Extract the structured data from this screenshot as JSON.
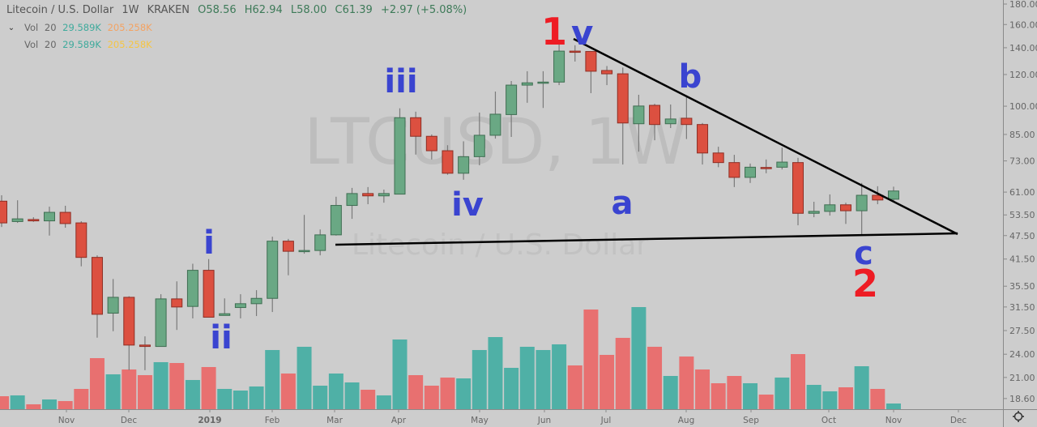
{
  "header": {
    "symbol": "Litecoin / U.S. Dollar",
    "interval": "1W",
    "exchange": "KRAKEN",
    "open": "O58.56",
    "high": "H62.94",
    "low": "L58.00",
    "close": "C61.39",
    "change": "+2.97 (+5.08%)"
  },
  "indicators": [
    {
      "name": "Vol",
      "length": "20",
      "value": "29.589K",
      "ma": "205.258K"
    },
    {
      "name": "Vol",
      "length": "20",
      "value": "29.589K",
      "ma": "205.258K"
    }
  ],
  "watermark": {
    "ticker": "LTCUSD, 1W",
    "description": "Litecoin / U.S. Dollar"
  },
  "icons": {
    "collapse": "chevron-down-icon",
    "settings": "gear-icon"
  },
  "colors": {
    "up": "#6aa884",
    "down": "#dc5040",
    "vol_up": "#4fb0a6",
    "vol_down": "#e87070",
    "wave_label": "#3a44d0",
    "wave_label_major": "#ee1c24",
    "background": "#cdcdcd"
  },
  "annotations": {
    "wave_1_major": "1",
    "wave_v": "v",
    "wave_i": "i",
    "wave_ii": "ii",
    "wave_iii": "iii",
    "wave_iv": "iv",
    "wave_a": "a",
    "wave_b": "b",
    "wave_c": "c",
    "wave_2_major": "2"
  },
  "chart_data": {
    "type": "candlestick",
    "title": "Litecoin / U.S. Dollar",
    "interval": "1W",
    "y_scale": "log",
    "ylim": [
      18.0,
      185.0
    ],
    "y_ticks": [
      "180.00",
      "160.00",
      "140.00",
      "120.00",
      "100.00",
      "85.00",
      "73.00",
      "61.00",
      "53.50",
      "47.50",
      "41.50",
      "35.50",
      "31.50",
      "27.50",
      "24.00",
      "21.00",
      "18.60"
    ],
    "x_ticks": [
      "Nov",
      "Dec",
      "2019",
      "Feb",
      "Mar",
      "Apr",
      "May",
      "Jun",
      "Jul",
      "Aug",
      "Sep",
      "Oct",
      "Nov",
      "Dec"
    ],
    "volume_unit": "K",
    "candles": [
      {
        "o": 57.9,
        "h": 59.9,
        "l": 49.9,
        "c": 51.1,
        "v": 67.6
      },
      {
        "o": 51.5,
        "h": 58.2,
        "l": 51.1,
        "c": 52.3,
        "v": 71.9
      },
      {
        "o": 52.1,
        "h": 52.8,
        "l": 51.4,
        "c": 51.7,
        "v": 25.4
      },
      {
        "o": 51.7,
        "h": 56.1,
        "l": 47.5,
        "c": 54.3,
        "v": 50.7
      },
      {
        "o": 54.3,
        "h": 56.4,
        "l": 49.7,
        "c": 50.9,
        "v": 42.3
      },
      {
        "o": 51.1,
        "h": 51.6,
        "l": 39.8,
        "c": 41.9,
        "v": 105.7
      },
      {
        "o": 41.9,
        "h": 42.4,
        "l": 26.4,
        "c": 30.2,
        "v": 266.3
      },
      {
        "o": 30.4,
        "h": 37.0,
        "l": 27.4,
        "c": 33.3,
        "v": 181.8
      },
      {
        "o": 33.3,
        "h": 33.5,
        "l": 21.9,
        "c": 25.3,
        "v": 207.1
      },
      {
        "o": 25.3,
        "h": 26.6,
        "l": 21.9,
        "c": 25.1,
        "v": 177.5
      },
      {
        "o": 25.1,
        "h": 33.9,
        "l": 25.1,
        "c": 33.0,
        "v": 245.2
      },
      {
        "o": 33.0,
        "h": 36.5,
        "l": 27.6,
        "c": 31.5,
        "v": 240.9
      },
      {
        "o": 31.6,
        "h": 40.4,
        "l": 29.5,
        "c": 38.9,
        "v": 152.2
      },
      {
        "o": 38.9,
        "h": 41.5,
        "l": 29.7,
        "c": 29.7,
        "v": 219.8
      },
      {
        "o": 30.0,
        "h": 33.1,
        "l": 30.0,
        "c": 30.3,
        "v": 105.7
      },
      {
        "o": 31.4,
        "h": 33.9,
        "l": 29.5,
        "c": 32.1,
        "v": 97.2
      },
      {
        "o": 32.1,
        "h": 34.7,
        "l": 29.9,
        "c": 33.1,
        "v": 118.4
      },
      {
        "o": 33.1,
        "h": 47.2,
        "l": 30.6,
        "c": 46.0,
        "v": 308.6
      },
      {
        "o": 46.0,
        "h": 46.6,
        "l": 37.8,
        "c": 43.4,
        "v": 186.0
      },
      {
        "o": 43.4,
        "h": 53.5,
        "l": 42.8,
        "c": 43.6,
        "v": 325.5
      },
      {
        "o": 43.6,
        "h": 49.2,
        "l": 42.4,
        "c": 47.7,
        "v": 122.6
      },
      {
        "o": 47.7,
        "h": 59.4,
        "l": 47.5,
        "c": 56.5,
        "v": 186.0
      },
      {
        "o": 56.5,
        "h": 62.5,
        "l": 52.3,
        "c": 60.5,
        "v": 139.5
      },
      {
        "o": 60.5,
        "h": 62.8,
        "l": 56.9,
        "c": 59.7,
        "v": 101.4
      },
      {
        "o": 59.7,
        "h": 61.9,
        "l": 57.4,
        "c": 60.5,
        "v": 71.9
      },
      {
        "o": 60.3,
        "h": 98.8,
        "l": 60.2,
        "c": 93.6,
        "v": 363.5
      },
      {
        "o": 93.6,
        "h": 96.9,
        "l": 75.7,
        "c": 84.1,
        "v": 177.5
      },
      {
        "o": 84.1,
        "h": 85.0,
        "l": 73.6,
        "c": 77.4,
        "v": 122.6
      },
      {
        "o": 77.4,
        "h": 79.9,
        "l": 67.4,
        "c": 68.0,
        "v": 164.9
      },
      {
        "o": 68.0,
        "h": 81.7,
        "l": 65.5,
        "c": 74.8,
        "v": 160.6
      },
      {
        "o": 74.8,
        "h": 96.4,
        "l": 71.2,
        "c": 84.6,
        "v": 308.6
      },
      {
        "o": 84.6,
        "h": 108.8,
        "l": 83.0,
        "c": 95.5,
        "v": 376.2
      },
      {
        "o": 95.3,
        "h": 115.6,
        "l": 83.8,
        "c": 112.9,
        "v": 215.6
      },
      {
        "o": 112.9,
        "h": 122.3,
        "l": 102.0,
        "c": 114.4,
        "v": 325.5
      },
      {
        "o": 114.4,
        "h": 122.3,
        "l": 99.0,
        "c": 114.9,
        "v": 308.6
      },
      {
        "o": 114.9,
        "h": 142.6,
        "l": 112.9,
        "c": 137.3,
        "v": 338.2
      },
      {
        "o": 137.3,
        "h": 142.0,
        "l": 129.3,
        "c": 136.7,
        "v": 228.3
      },
      {
        "o": 137.0,
        "h": 137.0,
        "l": 107.8,
        "c": 122.3,
        "v": 519.9
      },
      {
        "o": 122.8,
        "h": 126.0,
        "l": 112.9,
        "c": 120.5,
        "v": 283.2
      },
      {
        "o": 120.5,
        "h": 124.9,
        "l": 71.5,
        "c": 90.8,
        "v": 372.0
      },
      {
        "o": 90.4,
        "h": 106.8,
        "l": 77.0,
        "c": 100.1,
        "v": 532.6
      },
      {
        "o": 100.5,
        "h": 101.4,
        "l": 82.2,
        "c": 90.0,
        "v": 325.5
      },
      {
        "o": 90.4,
        "h": 101.0,
        "l": 88.2,
        "c": 92.9,
        "v": 173.3
      },
      {
        "o": 93.3,
        "h": 106.3,
        "l": 82.8,
        "c": 90.0,
        "v": 274.8
      },
      {
        "o": 90.0,
        "h": 90.8,
        "l": 71.5,
        "c": 76.4,
        "v": 207.1
      },
      {
        "o": 76.4,
        "h": 79.2,
        "l": 70.4,
        "c": 72.3,
        "v": 135.3
      },
      {
        "o": 72.3,
        "h": 75.6,
        "l": 62.8,
        "c": 66.4,
        "v": 173.3
      },
      {
        "o": 66.4,
        "h": 71.9,
        "l": 64.3,
        "c": 70.4,
        "v": 135.3
      },
      {
        "o": 70.3,
        "h": 73.6,
        "l": 68.0,
        "c": 70.1,
        "v": 76.1
      },
      {
        "o": 70.4,
        "h": 78.8,
        "l": 69.5,
        "c": 72.5,
        "v": 164.9
      },
      {
        "o": 72.3,
        "h": 74.3,
        "l": 50.4,
        "c": 54.0,
        "v": 287.4
      },
      {
        "o": 54.0,
        "h": 57.7,
        "l": 52.8,
        "c": 54.6,
        "v": 126.8
      },
      {
        "o": 54.6,
        "h": 60.2,
        "l": 53.3,
        "c": 56.7,
        "v": 93.0
      },
      {
        "o": 56.7,
        "h": 57.4,
        "l": 50.8,
        "c": 54.8,
        "v": 114.1
      },
      {
        "o": 54.8,
        "h": 64.3,
        "l": 47.7,
        "c": 59.9,
        "v": 224.0
      },
      {
        "o": 59.9,
        "h": 63.1,
        "l": 56.9,
        "c": 58.3,
        "v": 105.7
      },
      {
        "o": 58.56,
        "h": 62.94,
        "l": 58.0,
        "c": 61.39,
        "v": 29.589
      }
    ]
  }
}
